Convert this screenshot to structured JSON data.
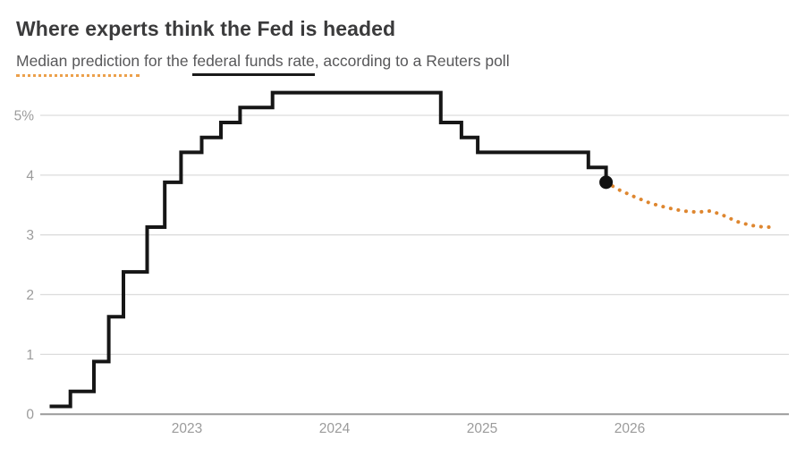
{
  "header": {
    "title": "Where experts think the Fed is headed",
    "subtitle_segments": [
      {
        "text": "Median prediction",
        "style": "dotted-orange-underline"
      },
      {
        "text": " for the ",
        "style": "plain"
      },
      {
        "text": "federal funds rate",
        "style": "solid-underline"
      },
      {
        "text": ", according to a Reuters poll",
        "style": "plain"
      }
    ]
  },
  "colors": {
    "title_text": "#3b3b3c",
    "subtitle_text": "#58585a",
    "actual_line": "#161616",
    "endpoint_dot": "#111111",
    "forecast_dots": "#de862f",
    "underline_orange": "#eca04b",
    "underline_solid": "#1a1a1a",
    "gridline": "#dcdcdc",
    "axis_baseline": "#9a9a9a",
    "tick_label": "#9b9b9b",
    "background": "#ffffff"
  },
  "chart_data": {
    "type": "line",
    "subtype": "step",
    "title": "Where experts think the Fed is headed",
    "subtitle": "Median prediction for the federal funds rate, according to a Reuters poll",
    "unit": "percent",
    "grid": "horizontal-only",
    "legend": "none",
    "x_domain": [
      2022.0,
      2027.08
    ],
    "y_domain": [
      0,
      5.6
    ],
    "y_ticks": [
      {
        "value": 5,
        "label": "5%"
      },
      {
        "value": 4,
        "label": "4"
      },
      {
        "value": 3,
        "label": "3"
      },
      {
        "value": 2,
        "label": "2"
      },
      {
        "value": 1,
        "label": "1"
      },
      {
        "value": 0,
        "label": "0"
      }
    ],
    "x_ticks": [
      {
        "value": 2023,
        "label": "2023"
      },
      {
        "value": 2024,
        "label": "2024"
      },
      {
        "value": 2025,
        "label": "2025"
      },
      {
        "value": 2026,
        "label": "2026"
      }
    ],
    "series": [
      {
        "name": "actual-fed-funds-rate",
        "style": "step-solid",
        "points": [
          [
            2022.07,
            0.13
          ],
          [
            2022.21,
            0.38
          ],
          [
            2022.37,
            0.88
          ],
          [
            2022.47,
            1.63
          ],
          [
            2022.57,
            2.38
          ],
          [
            2022.73,
            3.13
          ],
          [
            2022.85,
            3.88
          ],
          [
            2022.96,
            4.38
          ],
          [
            2023.1,
            4.63
          ],
          [
            2023.23,
            4.88
          ],
          [
            2023.36,
            5.13
          ],
          [
            2023.58,
            5.38
          ],
          [
            2024.72,
            4.88
          ],
          [
            2024.86,
            4.63
          ],
          [
            2024.97,
            4.38
          ],
          [
            2025.72,
            4.13
          ],
          [
            2025.84,
            3.88
          ]
        ]
      },
      {
        "name": "reuters-poll-median-forecast",
        "style": "dotted",
        "points": [
          [
            2025.84,
            3.88
          ],
          [
            2025.93,
            3.75
          ],
          [
            2026.03,
            3.64
          ],
          [
            2026.14,
            3.53
          ],
          [
            2026.26,
            3.45
          ],
          [
            2026.36,
            3.4
          ],
          [
            2026.46,
            3.38
          ],
          [
            2026.55,
            3.4
          ],
          [
            2026.63,
            3.33
          ],
          [
            2026.73,
            3.22
          ],
          [
            2026.82,
            3.16
          ],
          [
            2026.91,
            3.13
          ],
          [
            2026.99,
            3.13
          ]
        ]
      }
    ],
    "endpoint_marker": {
      "x": 2025.84,
      "y": 3.88
    }
  }
}
